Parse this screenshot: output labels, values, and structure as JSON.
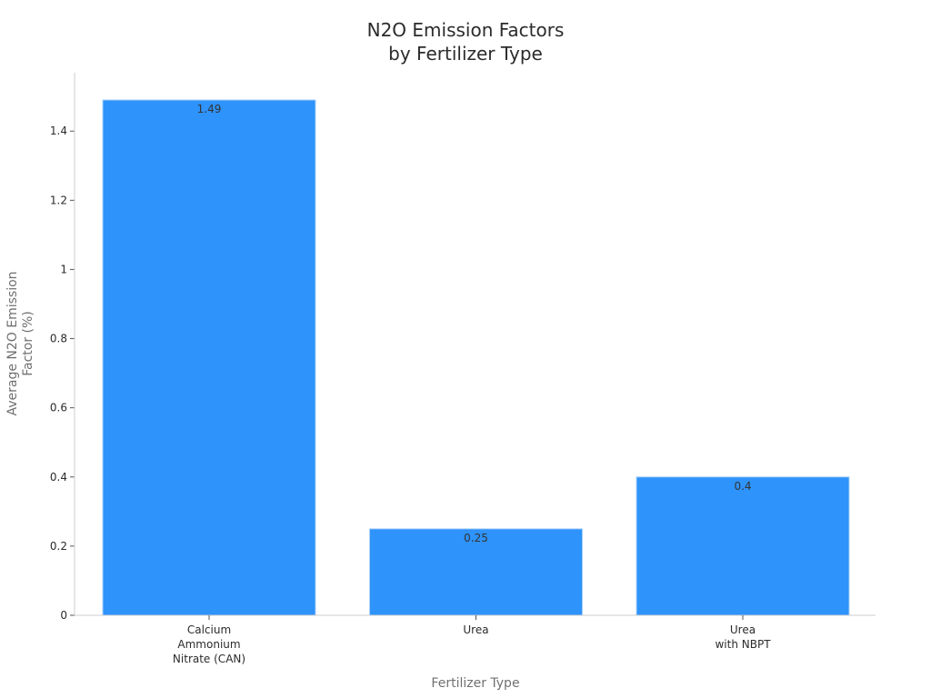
{
  "chart_data": {
    "type": "bar",
    "title_lines": [
      "N2O Emission Factors",
      "by Fertilizer Type"
    ],
    "xlabel": "Fertilizer Type",
    "ylabel_lines": [
      "Average N2O Emission",
      "Factor (%)"
    ],
    "categories": [
      [
        "Calcium",
        "Ammonium",
        "Nitrate (CAN)"
      ],
      [
        "Urea"
      ],
      [
        "Urea",
        "with NBPT"
      ]
    ],
    "values": [
      1.49,
      0.25,
      0.4
    ],
    "data_labels": [
      "1.49",
      "0.25",
      "0.4"
    ],
    "ylim": [
      0,
      1.55
    ],
    "yticks": [
      0,
      0.2,
      0.4,
      0.6,
      0.8,
      1,
      1.2,
      1.4
    ],
    "ytick_labels": [
      "0",
      "0.2",
      "0.4",
      "0.6",
      "0.8",
      "1",
      "1.2",
      "1.4"
    ],
    "grid": false,
    "legend": "none",
    "colors": {
      "bar": "#2e93fa",
      "axis": "#cccccc",
      "text": "#2b2b2b",
      "muted": "#707070"
    }
  }
}
